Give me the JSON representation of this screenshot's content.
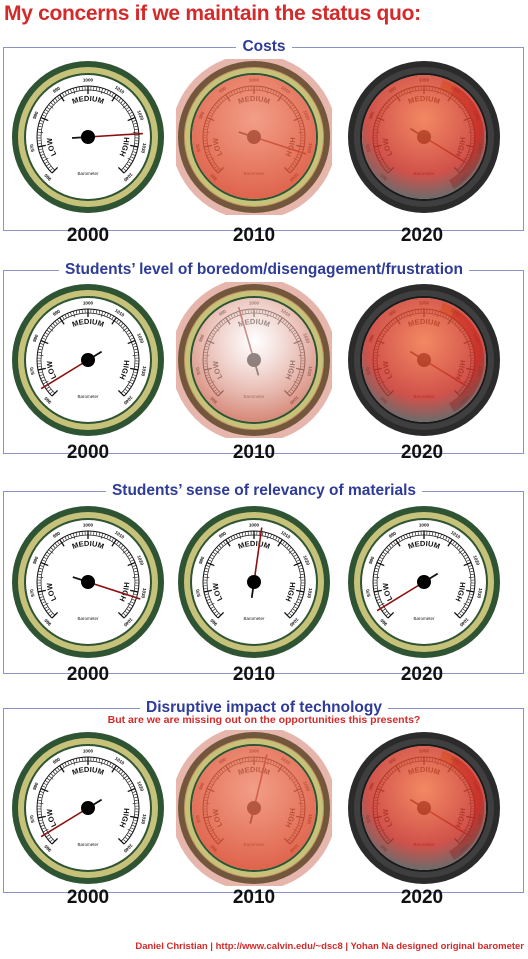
{
  "title": "My concerns if we maintain the status quo:",
  "footer": "Daniel Christian  |  http://www.calvin.edu/~dsc8  | Yohan Na designed original barometer",
  "gauge_labels": {
    "low": "LOW",
    "medium": "MEDIUM",
    "high": "HIGH",
    "brand": "Barometer",
    "scale": [
      "960",
      "970",
      "980",
      "990",
      "1000",
      "1010",
      "1020",
      "1030",
      "1040"
    ]
  },
  "colors": {
    "title_red": "#d42a2a",
    "section_blue": "#2e3b97",
    "needle_red": "#8b1010",
    "overlay_red": "#d9482c",
    "danger_arc": "#c81818"
  },
  "sections": [
    {
      "title": "Costs",
      "subtitle": "",
      "gauges": [
        {
          "year": "2000",
          "level": 0.82,
          "style": "clean"
        },
        {
          "year": "2010",
          "level": 0.9,
          "style": "red-tint"
        },
        {
          "year": "2020",
          "level": 0.95,
          "style": "dark-red"
        }
      ]
    },
    {
      "title": "Students’ level of boredom/disengagement/frustration",
      "subtitle": "",
      "gauges": [
        {
          "year": "2000",
          "level": 0.05,
          "style": "clean"
        },
        {
          "year": "2010",
          "level": 0.44,
          "style": "pink-tint"
        },
        {
          "year": "2020",
          "level": 0.95,
          "style": "dark-red"
        }
      ]
    },
    {
      "title": "Students’ sense of relevancy of materials",
      "subtitle": "",
      "gauges": [
        {
          "year": "2000",
          "level": 0.9,
          "style": "clean"
        },
        {
          "year": "2010",
          "level": 0.53,
          "style": "clean"
        },
        {
          "year": "2020",
          "level": 0.05,
          "style": "clean"
        }
      ]
    },
    {
      "title": "Disruptive impact of technology",
      "subtitle": "But are we are missing out on the opportunities this presents?",
      "gauges": [
        {
          "year": "2000",
          "level": 0.05,
          "style": "clean"
        },
        {
          "year": "2010",
          "level": 0.55,
          "style": "red-tint"
        },
        {
          "year": "2020",
          "level": 0.95,
          "style": "dark-red"
        }
      ]
    }
  ]
}
